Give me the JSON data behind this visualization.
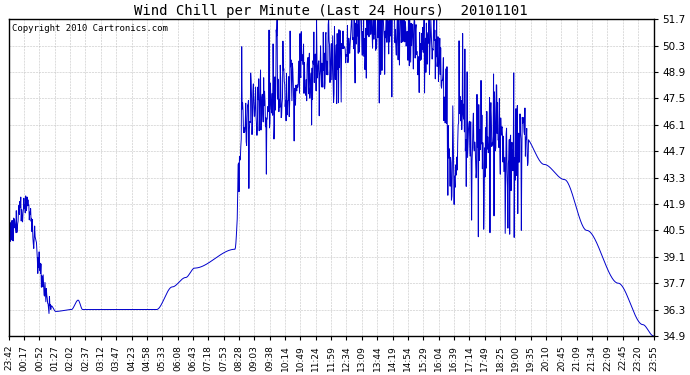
{
  "title": "Wind Chill per Minute (Last 24 Hours)  20101101",
  "copyright_text": "Copyright 2010 Cartronics.com",
  "line_color": "#0000cc",
  "background_color": "#ffffff",
  "grid_color": "#aaaaaa",
  "ylim": [
    34.9,
    51.7
  ],
  "yticks": [
    34.9,
    36.3,
    37.7,
    39.1,
    40.5,
    41.9,
    43.3,
    44.7,
    46.1,
    47.5,
    48.9,
    50.3,
    51.7
  ],
  "xtick_labels": [
    "23:42",
    "00:17",
    "00:52",
    "01:27",
    "02:02",
    "02:37",
    "03:12",
    "03:47",
    "04:23",
    "04:58",
    "05:33",
    "06:08",
    "06:43",
    "07:18",
    "07:53",
    "08:28",
    "09:03",
    "09:38",
    "10:14",
    "10:49",
    "11:24",
    "11:59",
    "12:34",
    "13:09",
    "13:44",
    "14:19",
    "14:54",
    "15:29",
    "16:04",
    "16:39",
    "17:14",
    "17:49",
    "18:25",
    "19:00",
    "19:35",
    "20:10",
    "20:45",
    "21:09",
    "21:34",
    "22:09",
    "22:45",
    "23:20",
    "23:55"
  ],
  "figsize": [
    6.9,
    3.75
  ],
  "dpi": 100
}
